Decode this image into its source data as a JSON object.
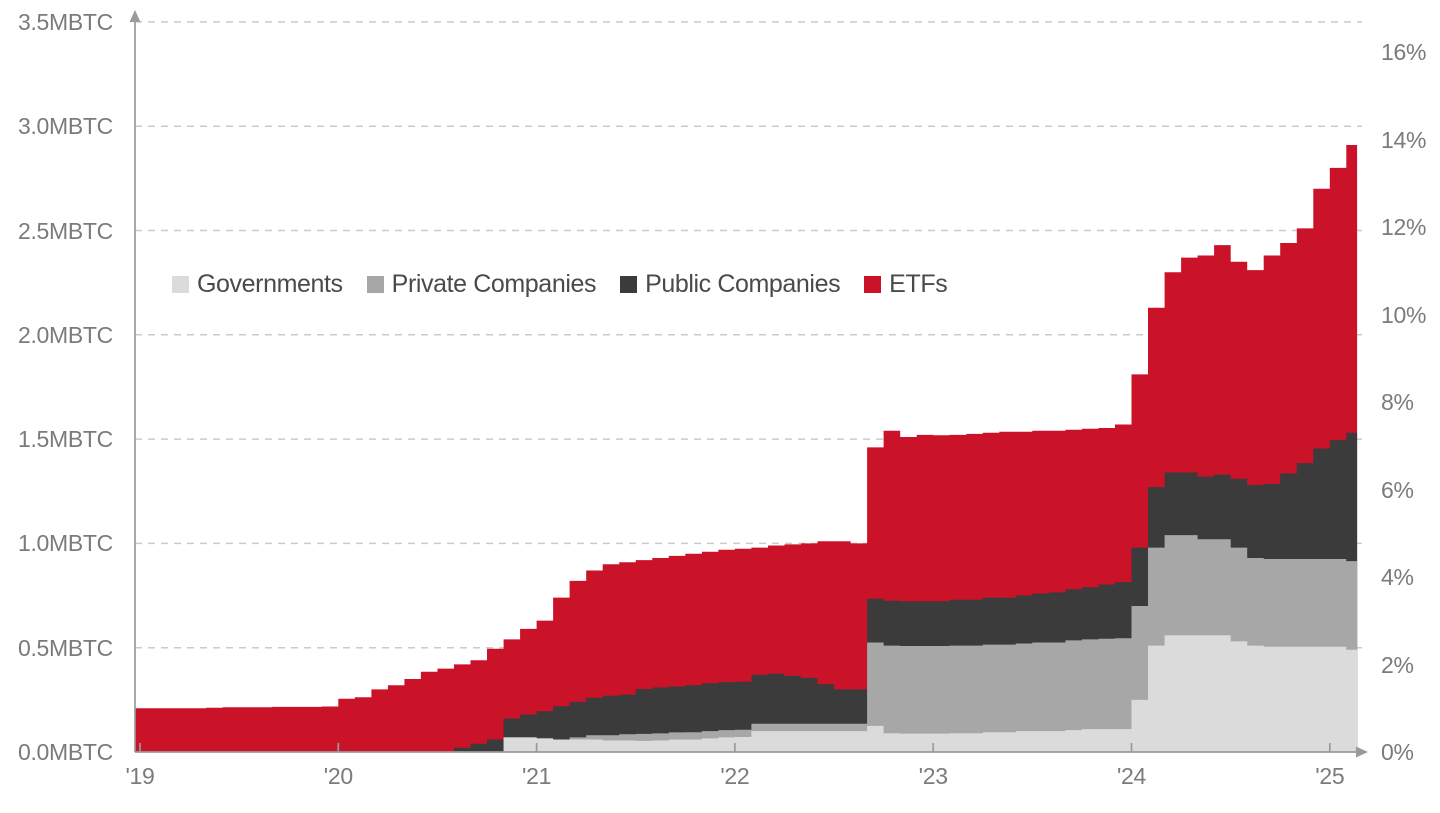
{
  "chart_data": {
    "type": "area",
    "stacked": true,
    "title": "",
    "x_axis": {
      "tick_labels": [
        "'19",
        "'20",
        "'21",
        "'22",
        "'23",
        "'24",
        "'25"
      ],
      "unit": "year",
      "range_years_since_2019": [
        0,
        6.15
      ]
    },
    "y_axis_left": {
      "tick_labels": [
        "0.0MBTC",
        "0.5MBTC",
        "1.0MBTC",
        "1.5MBTC",
        "2.0MBTC",
        "2.5MBTC",
        "3.0MBTC",
        "3.5MBTC"
      ],
      "ylim": [
        0,
        3.5
      ],
      "unit": "MBTC"
    },
    "y_axis_right": {
      "tick_labels": [
        "0%",
        "2%",
        "4%",
        "6%",
        "8%",
        "10%",
        "12%",
        "14%",
        "16%"
      ],
      "ylim": [
        0,
        16
      ],
      "unit": "percent of supply"
    },
    "grid": "dashed horizontal",
    "legend_position": "inside top-left",
    "months_since_jan_2019": [
      0,
      1,
      2,
      3,
      4,
      5,
      6,
      7,
      8,
      9,
      10,
      11,
      12,
      13,
      14,
      15,
      16,
      17,
      18,
      19,
      20,
      21,
      22,
      23,
      24,
      25,
      26,
      27,
      28,
      29,
      30,
      31,
      32,
      33,
      34,
      35,
      36,
      37,
      38,
      39,
      40,
      41,
      42,
      43,
      44,
      45,
      46,
      47,
      48,
      49,
      50,
      51,
      52,
      53,
      54,
      55,
      56,
      57,
      58,
      59,
      60,
      61,
      62,
      63,
      64,
      65,
      66,
      67,
      68,
      69,
      70,
      71,
      72,
      73,
      73.65
    ],
    "series": [
      {
        "name": "Governments",
        "color": "#dbdbdb",
        "values_mbtc": [
          0,
          0,
          0,
          0,
          0,
          0,
          0,
          0,
          0,
          0,
          0,
          0,
          0,
          0,
          0,
          0,
          0,
          0,
          0,
          0,
          0,
          0,
          0.07,
          0.07,
          0.065,
          0.06,
          0.06,
          0.06,
          0.055,
          0.055,
          0.053,
          0.055,
          0.06,
          0.06,
          0.065,
          0.07,
          0.072,
          0.1,
          0.1,
          0.1,
          0.1,
          0.1,
          0.1,
          0.1,
          0.125,
          0.09,
          0.088,
          0.088,
          0.088,
          0.09,
          0.09,
          0.095,
          0.095,
          0.1,
          0.1,
          0.1,
          0.105,
          0.11,
          0.11,
          0.11,
          0.25,
          0.51,
          0.56,
          0.56,
          0.56,
          0.56,
          0.53,
          0.51,
          0.505,
          0.505,
          0.505,
          0.505,
          0.505,
          0.49,
          0.49
        ]
      },
      {
        "name": "Private Companies",
        "color": "#a7a7a7",
        "values_mbtc": [
          0,
          0,
          0,
          0,
          0,
          0,
          0,
          0,
          0,
          0,
          0,
          0,
          0,
          0,
          0,
          0,
          0,
          0,
          0,
          0,
          0,
          0,
          0,
          0,
          0,
          0,
          0.01,
          0.02,
          0.025,
          0.03,
          0.034,
          0.034,
          0.034,
          0.035,
          0.035,
          0.035,
          0.035,
          0.035,
          0.035,
          0.035,
          0.035,
          0.035,
          0.035,
          0.035,
          0.4,
          0.42,
          0.42,
          0.42,
          0.42,
          0.42,
          0.42,
          0.42,
          0.42,
          0.42,
          0.425,
          0.425,
          0.43,
          0.43,
          0.433,
          0.435,
          0.45,
          0.47,
          0.48,
          0.48,
          0.46,
          0.46,
          0.45,
          0.42,
          0.42,
          0.42,
          0.42,
          0.42,
          0.42,
          0.425,
          0.425
        ]
      },
      {
        "name": "Public Companies",
        "color": "#3b3b3b",
        "values_mbtc": [
          0,
          0,
          0,
          0,
          0,
          0,
          0,
          0,
          0,
          0,
          0,
          0,
          0,
          0,
          0,
          0,
          0,
          0,
          0,
          0.02,
          0.04,
          0.06,
          0.09,
          0.11,
          0.13,
          0.16,
          0.17,
          0.18,
          0.19,
          0.19,
          0.215,
          0.22,
          0.22,
          0.225,
          0.23,
          0.23,
          0.23,
          0.235,
          0.24,
          0.23,
          0.22,
          0.19,
          0.165,
          0.165,
          0.21,
          0.215,
          0.215,
          0.215,
          0.215,
          0.22,
          0.22,
          0.225,
          0.225,
          0.23,
          0.235,
          0.24,
          0.245,
          0.25,
          0.26,
          0.27,
          0.28,
          0.29,
          0.3,
          0.3,
          0.3,
          0.31,
          0.33,
          0.35,
          0.36,
          0.41,
          0.46,
          0.53,
          0.57,
          0.615,
          0.615
        ]
      },
      {
        "name": "ETFs",
        "color": "#ca1328",
        "values_mbtc": [
          0.21,
          0.21,
          0.21,
          0.21,
          0.212,
          0.215,
          0.215,
          0.215,
          0.216,
          0.216,
          0.216,
          0.218,
          0.255,
          0.262,
          0.3,
          0.32,
          0.35,
          0.385,
          0.4,
          0.4,
          0.4,
          0.435,
          0.38,
          0.41,
          0.435,
          0.52,
          0.58,
          0.61,
          0.63,
          0.635,
          0.618,
          0.621,
          0.626,
          0.63,
          0.63,
          0.635,
          0.637,
          0.61,
          0.615,
          0.63,
          0.645,
          0.685,
          0.71,
          0.7,
          0.725,
          0.815,
          0.787,
          0.797,
          0.795,
          0.79,
          0.795,
          0.79,
          0.795,
          0.785,
          0.78,
          0.775,
          0.765,
          0.76,
          0.75,
          0.755,
          0.83,
          0.86,
          0.96,
          1.03,
          1.06,
          1.1,
          1.04,
          1.03,
          1.095,
          1.105,
          1.125,
          1.245,
          1.305,
          1.38,
          1.38
        ]
      }
    ]
  },
  "legend": {
    "items": [
      {
        "label": "Governments",
        "color": "#dbdbdb"
      },
      {
        "label": "Private Companies",
        "color": "#a7a7a7"
      },
      {
        "label": "Public Companies",
        "color": "#3b3b3b"
      },
      {
        "label": "ETFs",
        "color": "#ca1328"
      }
    ]
  },
  "style": {
    "axis_color": "#9a9a9a",
    "grid_color": "#cbcbcb",
    "label_color": "#7b7b7b",
    "legend_text_color": "#4a4a4a",
    "background": "#ffffff"
  }
}
